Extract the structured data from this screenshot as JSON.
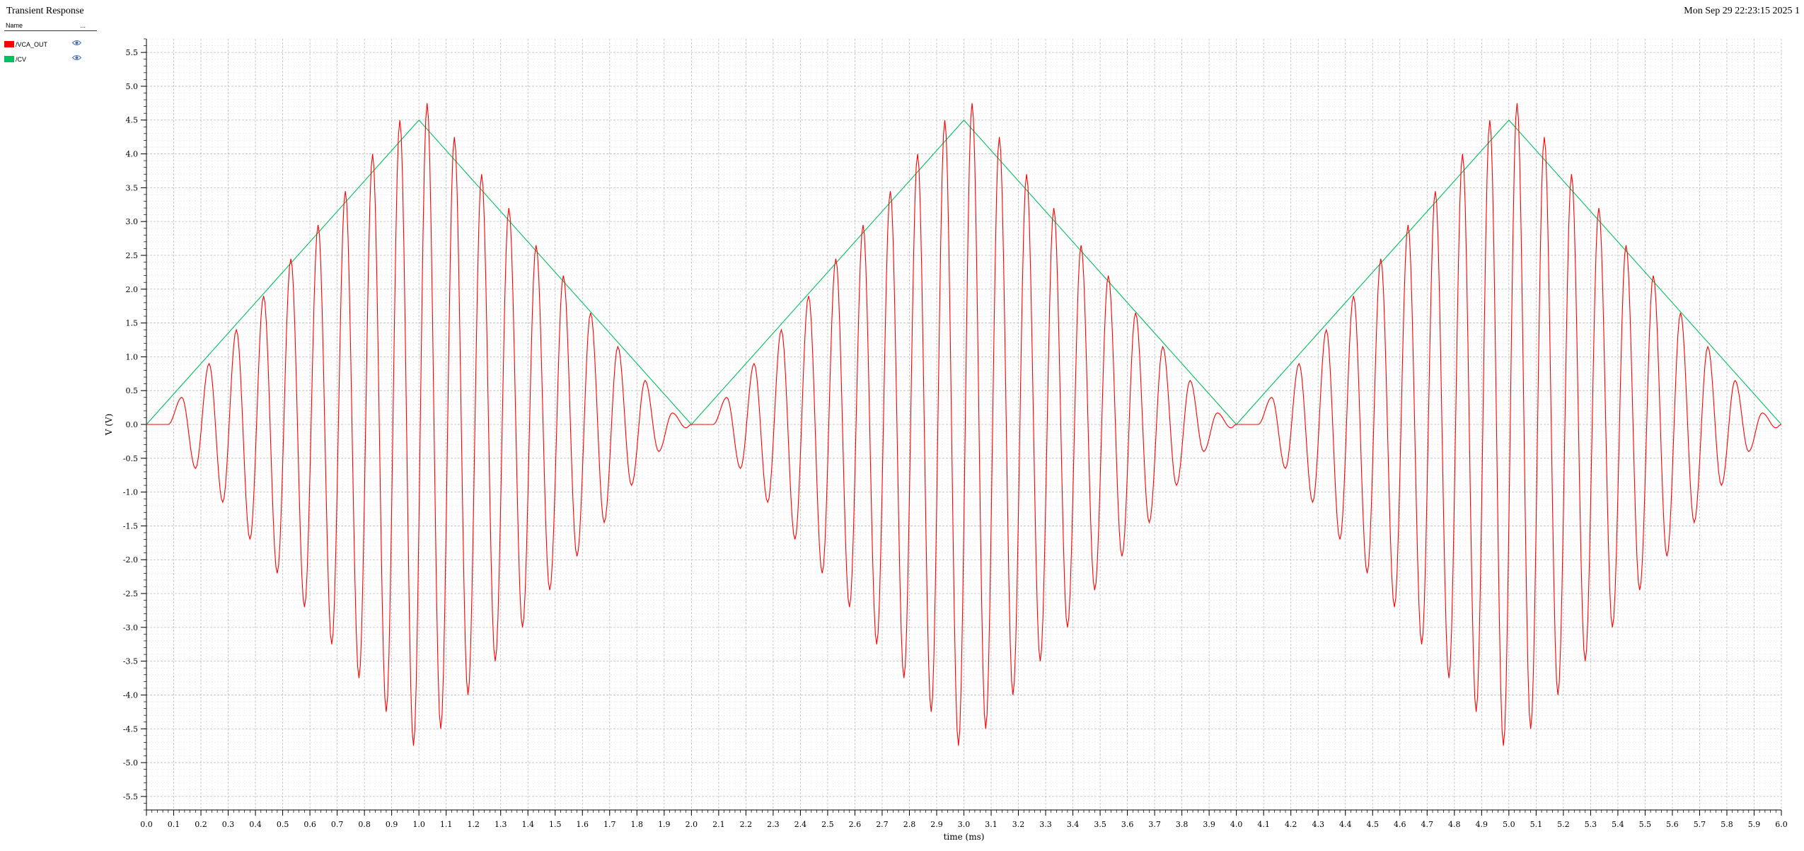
{
  "header": {
    "title": "Transient Response",
    "date": "Mon Sep 29 22:23:15 2025",
    "page": "1"
  },
  "legend": {
    "name_header": "Name",
    "menu_header": "...",
    "items": [
      {
        "label": "/VCA_OUT",
        "color": "#ff0000",
        "icon": "eye-icon"
      },
      {
        "label": "/CV",
        "color": "#00c060",
        "icon": "eye-icon"
      }
    ]
  },
  "chart_data": {
    "type": "line",
    "xlabel": "time (ms)",
    "ylabel": "V (V)",
    "xlim": [
      0.0,
      6.0
    ],
    "ylim": [
      -5.7,
      5.7
    ],
    "x_ticks": [
      "0.0",
      "0.1",
      "0.2",
      "0.3",
      "0.4",
      "0.5",
      "0.6",
      "0.7",
      "0.8",
      "0.9",
      "1.0",
      "1.1",
      "1.2",
      "1.3",
      "1.4",
      "1.5",
      "1.6",
      "1.7",
      "1.8",
      "1.9",
      "2.0",
      "2.1",
      "2.2",
      "2.3",
      "2.4",
      "2.5",
      "2.6",
      "2.7",
      "2.8",
      "2.9",
      "3.0",
      "3.1",
      "3.2",
      "3.3",
      "3.4",
      "3.5",
      "3.6",
      "3.7",
      "3.8",
      "3.9",
      "4.0",
      "4.1",
      "4.2",
      "4.3",
      "4.4",
      "4.5",
      "4.6",
      "4.7",
      "4.8",
      "4.9",
      "5.0",
      "5.1",
      "5.2",
      "5.3",
      "5.4",
      "5.5",
      "5.6",
      "5.7",
      "5.8",
      "5.9",
      "6.0"
    ],
    "y_ticks": [
      "5.5",
      "5.0",
      "4.5",
      "4.0",
      "3.5",
      "3.0",
      "2.5",
      "2.0",
      "1.5",
      "1.0",
      "0.5",
      "0.0",
      "-0.5",
      "-1.0",
      "-1.5",
      "-2.0",
      "-2.5",
      "-3.0",
      "-3.5",
      "-4.0",
      "-4.5",
      "-5.0",
      "-5.5"
    ],
    "grid": true,
    "series": [
      {
        "name": "/CV",
        "color": "#00c060",
        "x": [
          0.0,
          1.0,
          2.0,
          3.0,
          4.0,
          5.0,
          6.0
        ],
        "y": [
          0.0,
          4.5,
          0.0,
          4.5,
          0.0,
          4.5,
          0.0
        ]
      },
      {
        "name": "/VCA_OUT",
        "color": "#ff0000",
        "description_of_shape": "sine carrier (~10 kHz) amplitude-modulated by /CV",
        "extrema_x": [
          0.13,
          0.18,
          0.23,
          0.28,
          0.33,
          0.38,
          0.43,
          0.48,
          0.53,
          0.58,
          0.63,
          0.68,
          0.73,
          0.78,
          0.83,
          0.88,
          0.93,
          0.98,
          1.03,
          1.08,
          1.13,
          1.18,
          1.23,
          1.28,
          1.33,
          1.38,
          1.43,
          1.48,
          1.53,
          1.58,
          1.63,
          1.68,
          1.73,
          1.78,
          1.83,
          1.88,
          1.93,
          1.98
        ],
        "extrema_y": [
          0.4,
          -0.65,
          0.9,
          -1.15,
          1.4,
          -1.7,
          1.9,
          -2.2,
          2.45,
          -2.7,
          2.95,
          -3.25,
          3.45,
          -3.75,
          4.0,
          -4.25,
          4.5,
          -4.75,
          4.75,
          -4.5,
          4.25,
          -4.0,
          3.7,
          -3.5,
          3.2,
          -3.0,
          2.65,
          -2.45,
          2.2,
          -1.95,
          1.65,
          -1.45,
          1.15,
          -0.9,
          0.65,
          -0.4,
          0.17,
          -0.05
        ],
        "period_ms": 2.0
      }
    ]
  }
}
